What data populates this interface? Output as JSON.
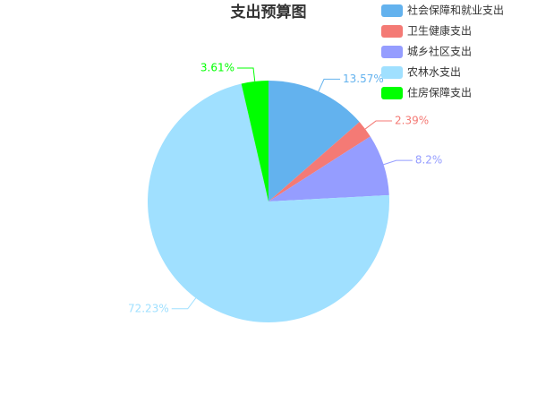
{
  "chart_data": {
    "type": "pie",
    "title": "支出预算图",
    "categories": [
      "社会保障和就业支出",
      "卫生健康支出",
      "城乡社区支出",
      "农林水支出",
      "住房保障支出"
    ],
    "values": [
      13.57,
      2.39,
      8.2,
      72.23,
      3.61
    ],
    "value_labels": [
      "13.57%",
      "2.39%",
      "8.2%",
      "72.23%",
      "3.61%"
    ],
    "colors": [
      "#63b2ee",
      "#f47a75",
      "#959dff",
      "#a0e0ff",
      "#00ff00"
    ],
    "legend": "top-right"
  }
}
